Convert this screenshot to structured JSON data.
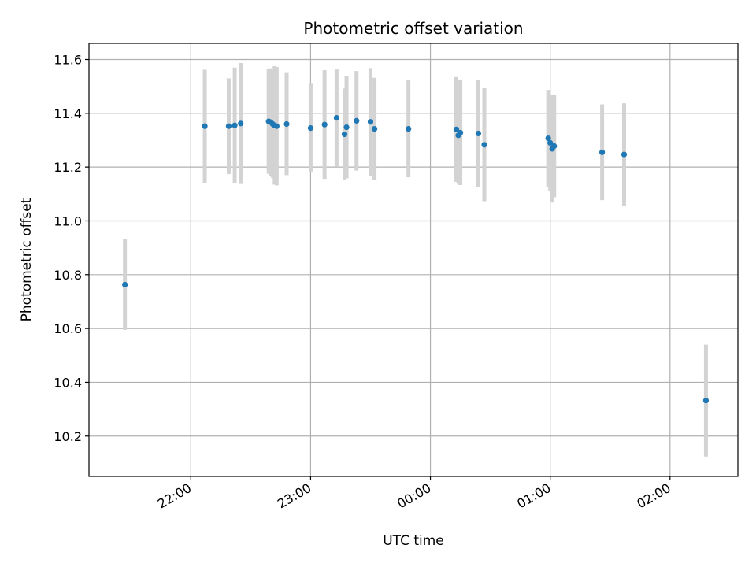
{
  "chart_data": {
    "type": "scatter",
    "title": "Photometric offset variation",
    "xlabel": "UTC time",
    "ylabel": "Photometric offset",
    "xlim": [
      "21:09",
      "02:34"
    ],
    "ylim": [
      10.05,
      11.66
    ],
    "grid": true,
    "x_ticks": [
      "22:00",
      "23:00",
      "00:00",
      "01:00",
      "02:00"
    ],
    "y_ticks": [
      10.2,
      10.4,
      10.6,
      10.8,
      11.0,
      11.2,
      11.4,
      11.6
    ],
    "points_color": "#1f77b4",
    "errorbar_color": "#d3d3d3",
    "series": [
      {
        "points": [
          {
            "t": "21:27",
            "y": 10.763,
            "err": 0.168
          },
          {
            "t": "22:07",
            "y": 11.352,
            "err": 0.21
          },
          {
            "t": "22:19",
            "y": 11.352,
            "err": 0.178
          },
          {
            "t": "22:22",
            "y": 11.355,
            "err": 0.215
          },
          {
            "t": "22:25",
            "y": 11.362,
            "err": 0.225
          },
          {
            "t": "22:39",
            "y": 11.37,
            "err": 0.195
          },
          {
            "t": "22:40",
            "y": 11.367,
            "err": 0.2
          },
          {
            "t": "22:41",
            "y": 11.36,
            "err": 0.2
          },
          {
            "t": "22:42",
            "y": 11.355,
            "err": 0.22
          },
          {
            "t": "22:43",
            "y": 11.352,
            "err": 0.22
          },
          {
            "t": "22:48",
            "y": 11.36,
            "err": 0.19
          },
          {
            "t": "23:00",
            "y": 11.345,
            "err": 0.165
          },
          {
            "t": "23:07",
            "y": 11.358,
            "err": 0.202
          },
          {
            "t": "23:13",
            "y": 11.383,
            "err": 0.18
          },
          {
            "t": "23:17",
            "y": 11.322,
            "err": 0.17
          },
          {
            "t": "23:18",
            "y": 11.348,
            "err": 0.19
          },
          {
            "t": "23:23",
            "y": 11.372,
            "err": 0.185
          },
          {
            "t": "23:30",
            "y": 11.368,
            "err": 0.2
          },
          {
            "t": "23:32",
            "y": 11.342,
            "err": 0.19
          },
          {
            "t": "23:49",
            "y": 11.342,
            "err": 0.18
          },
          {
            "t": "00:13",
            "y": 11.34,
            "err": 0.195
          },
          {
            "t": "00:14",
            "y": 11.318,
            "err": 0.18
          },
          {
            "t": "00:15",
            "y": 11.328,
            "err": 0.195
          },
          {
            "t": "00:24",
            "y": 11.325,
            "err": 0.198
          },
          {
            "t": "00:27",
            "y": 11.283,
            "err": 0.21
          },
          {
            "t": "00:59",
            "y": 11.307,
            "err": 0.18
          },
          {
            "t": "01:00",
            "y": 11.29,
            "err": 0.18
          },
          {
            "t": "01:01",
            "y": 11.268,
            "err": 0.2
          },
          {
            "t": "01:02",
            "y": 11.278,
            "err": 0.19
          },
          {
            "t": "01:26",
            "y": 11.255,
            "err": 0.178
          },
          {
            "t": "01:37",
            "y": 11.247,
            "err": 0.19
          },
          {
            "t": "02:18",
            "y": 10.332,
            "err": 0.208
          }
        ]
      }
    ]
  }
}
